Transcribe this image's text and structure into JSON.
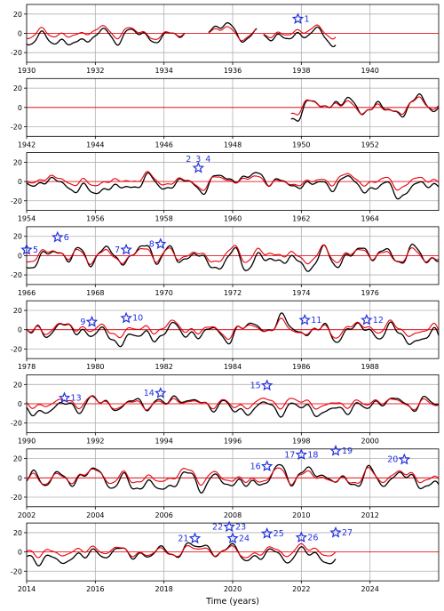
{
  "chart_data": {
    "type": "line",
    "xlabel": "Time (years)",
    "ylabel": "",
    "ylim": [
      -30,
      30
    ],
    "yticks": [
      -20,
      0,
      20
    ],
    "grid": true,
    "colors": {
      "series_1": "#000000",
      "series_2": "#e8000b",
      "marker": "#1f2fe0",
      "zero_line": "#e8000b"
    },
    "series": [
      {
        "name": ""
      },
      {
        "name": ""
      }
    ],
    "panels": [
      {
        "xlim": [
          1930,
          1942
        ],
        "xticks": [
          1930,
          1932,
          1934,
          1936,
          1938,
          1940
        ],
        "segments": [
          [
            1930.0,
            1934.6
          ],
          [
            1935.3,
            1936.7
          ],
          [
            1936.9,
            1939.0
          ]
        ],
        "events": [
          {
            "label": "1",
            "x": 1937.9,
            "y": 15
          }
        ]
      },
      {
        "xlim": [
          1942,
          1954
        ],
        "xticks": [
          1942,
          1944,
          1946,
          1948,
          1950,
          1952
        ],
        "segments": [
          [
            1949.7,
            1954.0
          ]
        ],
        "events": []
      },
      {
        "xlim": [
          1954,
          1966
        ],
        "xticks": [
          1954,
          1956,
          1958,
          1960,
          1962,
          1964
        ],
        "segments": [
          [
            1954.0,
            1966.0
          ]
        ],
        "events": [
          {
            "label": "2",
            "x": 1959.0,
            "y": 14
          },
          {
            "label": "3",
            "x": 1959.0,
            "y": 14
          },
          {
            "label": "4",
            "x": 1959.0,
            "y": 14
          }
        ]
      },
      {
        "xlim": [
          1966,
          1978
        ],
        "xticks": [
          1966,
          1968,
          1970,
          1972,
          1974,
          1976
        ],
        "segments": [
          [
            1966.0,
            1978.0
          ]
        ],
        "events": [
          {
            "label": "5",
            "x": 1966.0,
            "y": 6
          },
          {
            "label": "6",
            "x": 1966.9,
            "y": 19
          },
          {
            "label": "7",
            "x": 1968.9,
            "y": 6
          },
          {
            "label": "8",
            "x": 1969.9,
            "y": 12
          }
        ]
      },
      {
        "xlim": [
          1978,
          1990
        ],
        "xticks": [
          1978,
          1980,
          1982,
          1984,
          1986,
          1988
        ],
        "segments": [
          [
            1978.0,
            1990.0
          ]
        ],
        "events": [
          {
            "label": "9",
            "x": 1979.9,
            "y": 8
          },
          {
            "label": "10",
            "x": 1980.9,
            "y": 12
          },
          {
            "label": "11",
            "x": 1986.1,
            "y": 10
          },
          {
            "label": "12",
            "x": 1987.9,
            "y": 10
          }
        ]
      },
      {
        "xlim": [
          1990,
          2002
        ],
        "xticks": [
          1990,
          1992,
          1994,
          1996,
          1998,
          2000
        ],
        "segments": [
          [
            1990.0,
            2002.0
          ]
        ],
        "events": [
          {
            "label": "13",
            "x": 1991.1,
            "y": 6
          },
          {
            "label": "14",
            "x": 1993.9,
            "y": 11
          },
          {
            "label": "15",
            "x": 1997.0,
            "y": 19
          }
        ]
      },
      {
        "xlim": [
          2002,
          2014
        ],
        "xticks": [
          2002,
          2004,
          2006,
          2008,
          2010,
          2012
        ],
        "segments": [
          [
            2002.0,
            2014.0
          ]
        ],
        "events": [
          {
            "label": "16",
            "x": 2009.0,
            "y": 12
          },
          {
            "label": "17",
            "x": 2010.0,
            "y": 24
          },
          {
            "label": "18",
            "x": 2010.0,
            "y": 24
          },
          {
            "label": "19",
            "x": 2011.0,
            "y": 28
          },
          {
            "label": "20",
            "x": 2013.0,
            "y": 19
          }
        ]
      },
      {
        "xlim": [
          2014,
          2026
        ],
        "xticks": [
          2014,
          2016,
          2018,
          2020,
          2022,
          2024
        ],
        "segments": [
          [
            2014.0,
            2023.0
          ]
        ],
        "events": [
          {
            "label": "21",
            "x": 2018.9,
            "y": 14
          },
          {
            "label": "22",
            "x": 2019.9,
            "y": 26
          },
          {
            "label": "23",
            "x": 2019.9,
            "y": 26
          },
          {
            "label": "24",
            "x": 2020.0,
            "y": 14
          },
          {
            "label": "25",
            "x": 2021.0,
            "y": 19
          },
          {
            "label": "26",
            "x": 2022.0,
            "y": 15
          },
          {
            "label": "27",
            "x": 2023.0,
            "y": 20
          }
        ]
      }
    ]
  }
}
